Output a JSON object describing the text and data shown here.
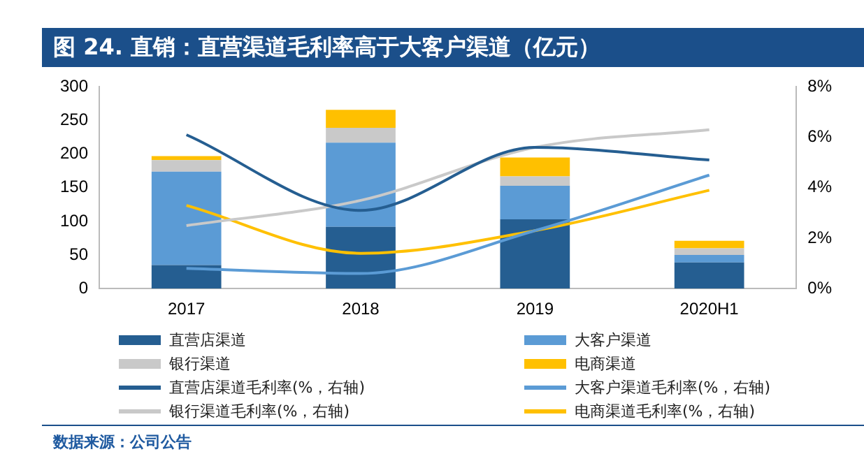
{
  "chart_data": {
    "type": "bar",
    "title": "图 24. 直销：直营渠道毛利率高于大客户渠道（亿元）",
    "stacked": true,
    "categories": [
      "2017",
      "2018",
      "2019",
      "2020H1"
    ],
    "series": [
      {
        "name": "直营店渠道",
        "color": "#255e91",
        "values": [
          35,
          92,
          103,
          39
        ]
      },
      {
        "name": "大客户渠道",
        "color": "#5b9bd5",
        "values": [
          139,
          125,
          50,
          11
        ]
      },
      {
        "name": "银行渠道",
        "color": "#c9c9c9",
        "values": [
          17,
          22,
          14,
          10
        ]
      },
      {
        "name": "电商渠道",
        "color": "#ffc000",
        "values": [
          6,
          27,
          28,
          11
        ]
      },
      {
        "name": "直营店渠道毛利率(%，右轴)",
        "type": "line",
        "axis": "y2",
        "color": "#255e91",
        "values": [
          6.1,
          3.1,
          5.6,
          5.1
        ]
      },
      {
        "name": "大客户渠道毛利率(%，右轴)",
        "type": "line",
        "axis": "y2",
        "color": "#5b9bd5",
        "values": [
          0.8,
          0.6,
          2.3,
          4.5
        ]
      },
      {
        "name": "银行渠道毛利率(%，右轴)",
        "type": "line",
        "axis": "y2",
        "color": "#c9c9c9",
        "values": [
          2.5,
          3.5,
          5.6,
          6.3
        ]
      },
      {
        "name": "电商渠道毛利率(%，右轴)",
        "type": "line",
        "axis": "y2",
        "color": "#ffc000",
        "values": [
          3.3,
          1.4,
          2.3,
          3.9
        ]
      }
    ],
    "ylim": [
      0,
      300
    ],
    "yticks": [
      0,
      50,
      100,
      150,
      200,
      250,
      300
    ],
    "y2lim": [
      0,
      8
    ],
    "y2ticks": [
      {
        "value": 0,
        "label": "0%"
      },
      {
        "value": 2,
        "label": "2%"
      },
      {
        "value": 4,
        "label": "4%"
      },
      {
        "value": 6,
        "label": "6%"
      },
      {
        "value": 8,
        "label": "8%"
      }
    ],
    "grid": false,
    "legend": "bottom",
    "marker": "none",
    "annotations": [
      "数据来源：公司公告"
    ]
  }
}
